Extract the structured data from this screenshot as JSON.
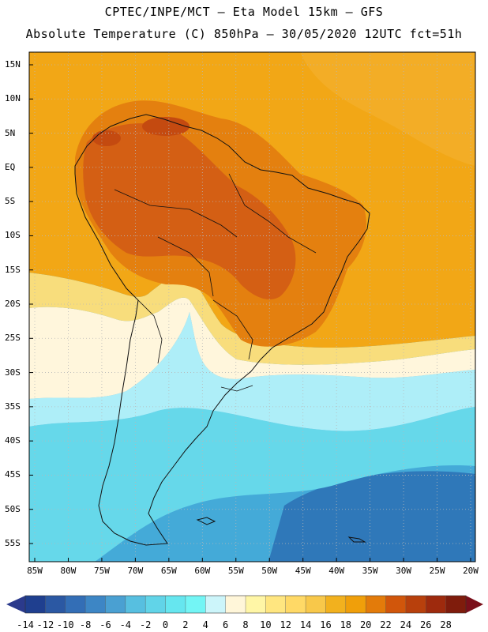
{
  "title": {
    "line1": "CPTEC/INPE/MCT –  Eta Model 15km – GFS",
    "line2": "Absolute Temperature (C) 850hPa – 30/05/2020 12UTC fct=51h"
  },
  "lat_labels": [
    "15N",
    "10N",
    "5N",
    "EQ",
    "5S",
    "10S",
    "15S",
    "20S",
    "25S",
    "30S",
    "35S",
    "40S",
    "45S",
    "50S",
    "55S"
  ],
  "lon_labels": [
    "85W",
    "80W",
    "75W",
    "70W",
    "65W",
    "60W",
    "55W",
    "50W",
    "45W",
    "40W",
    "35W",
    "30W",
    "25W",
    "20W"
  ],
  "colorbar": {
    "labels": [
      "-14",
      "-12",
      "-10",
      "-8",
      "-6",
      "-4",
      "-2",
      "0",
      "2",
      "4",
      "6",
      "8",
      "10",
      "12",
      "14",
      "16",
      "18",
      "20",
      "22",
      "24",
      "26",
      "28"
    ],
    "colors": [
      "#1f3f8f",
      "#2b58a3",
      "#336eb6",
      "#3d86c5",
      "#4aa0d2",
      "#57bfe0",
      "#61d4e8",
      "#66e6ef",
      "#73f5f5",
      "#ccf5fa",
      "#fff6d9",
      "#fff6a6",
      "#ffe680",
      "#ffd966",
      "#f8c84a",
      "#f2b11e",
      "#f09f0a",
      "#e37b0a",
      "#d1560b",
      "#b8400c",
      "#9e2a0d",
      "#7f1c0c"
    ],
    "min_color": "#2b3a8c",
    "max_color": "#7a0f1a"
  },
  "colors": {
    "warm_hot": "#d45f14",
    "warm": "#e4800f",
    "orange": "#f2a716",
    "yellow": "#f8dd7c",
    "cream": "#fff6dc",
    "cyan_light": "#aeeef8",
    "cyan": "#66d8ea",
    "blue_mid": "#44aad8",
    "blue_deep": "#2f78b9",
    "grid": "#b8b8b8",
    "coast": "#111111"
  }
}
